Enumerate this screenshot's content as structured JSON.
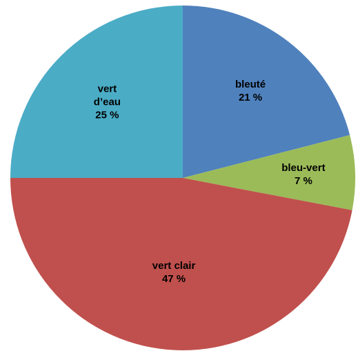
{
  "chart_data": {
    "type": "pie",
    "categories": [
      "bleuté",
      "bleu-vert",
      "vert clair",
      "vert d’eau"
    ],
    "values": [
      21,
      7,
      47,
      25
    ],
    "value_labels": [
      "21 %",
      "7 %",
      "47 %",
      "25 %"
    ],
    "colors": [
      "#4f81bd",
      "#9bbb59",
      "#c0504d",
      "#4bacc6"
    ]
  }
}
